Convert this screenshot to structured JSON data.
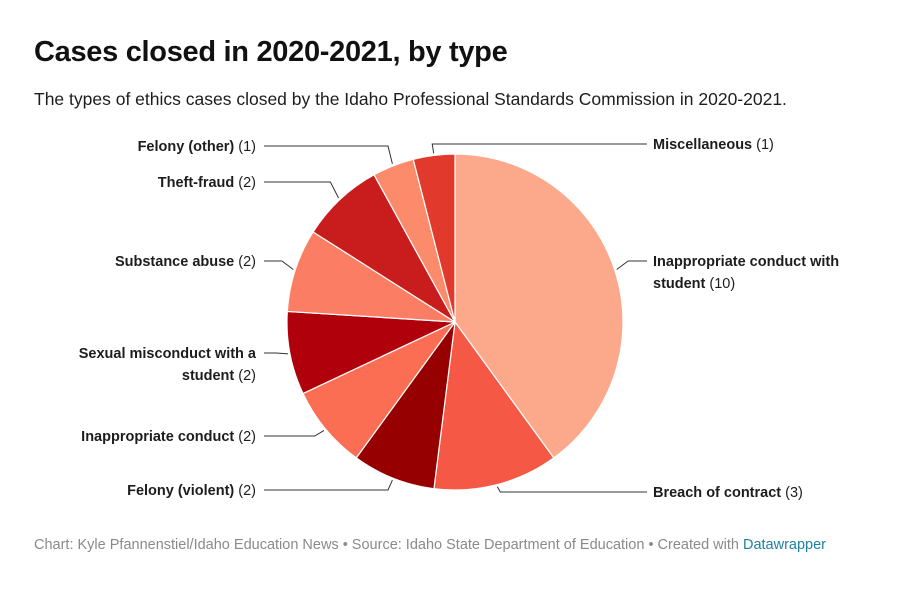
{
  "title": "Cases closed in 2020-2021, by type",
  "subtitle": "The types of ethics cases closed by the Idaho Professional Standards Commission in 2020-2021.",
  "footer": {
    "credit": "Chart: Kyle Pfannenstiel/Idaho Education News • Source: Idaho State Department of Education • Created with ",
    "link": "Datawrapper"
  },
  "chart_data": {
    "type": "pie",
    "title": "Cases closed in 2020-2021, by type",
    "slices": [
      {
        "label": "Inappropriate conduct with student",
        "value": 10,
        "color": "#fca98b"
      },
      {
        "label": "Breach of contract",
        "value": 3,
        "color": "#f55845"
      },
      {
        "label": "Felony (violent)",
        "value": 2,
        "color": "#960000"
      },
      {
        "label": "Inappropriate conduct",
        "value": 2,
        "color": "#fb6e54"
      },
      {
        "label": "Sexual misconduct with a student",
        "value": 2,
        "color": "#b0000c"
      },
      {
        "label": "Substance abuse",
        "value": 2,
        "color": "#fb7e64"
      },
      {
        "label": "Theft-fraud",
        "value": 2,
        "color": "#c91d1d"
      },
      {
        "label": "Felony (other)",
        "value": 1,
        "color": "#fc8b6c"
      },
      {
        "label": "Miscellaneous",
        "value": 1,
        "color": "#e2392d"
      }
    ]
  }
}
